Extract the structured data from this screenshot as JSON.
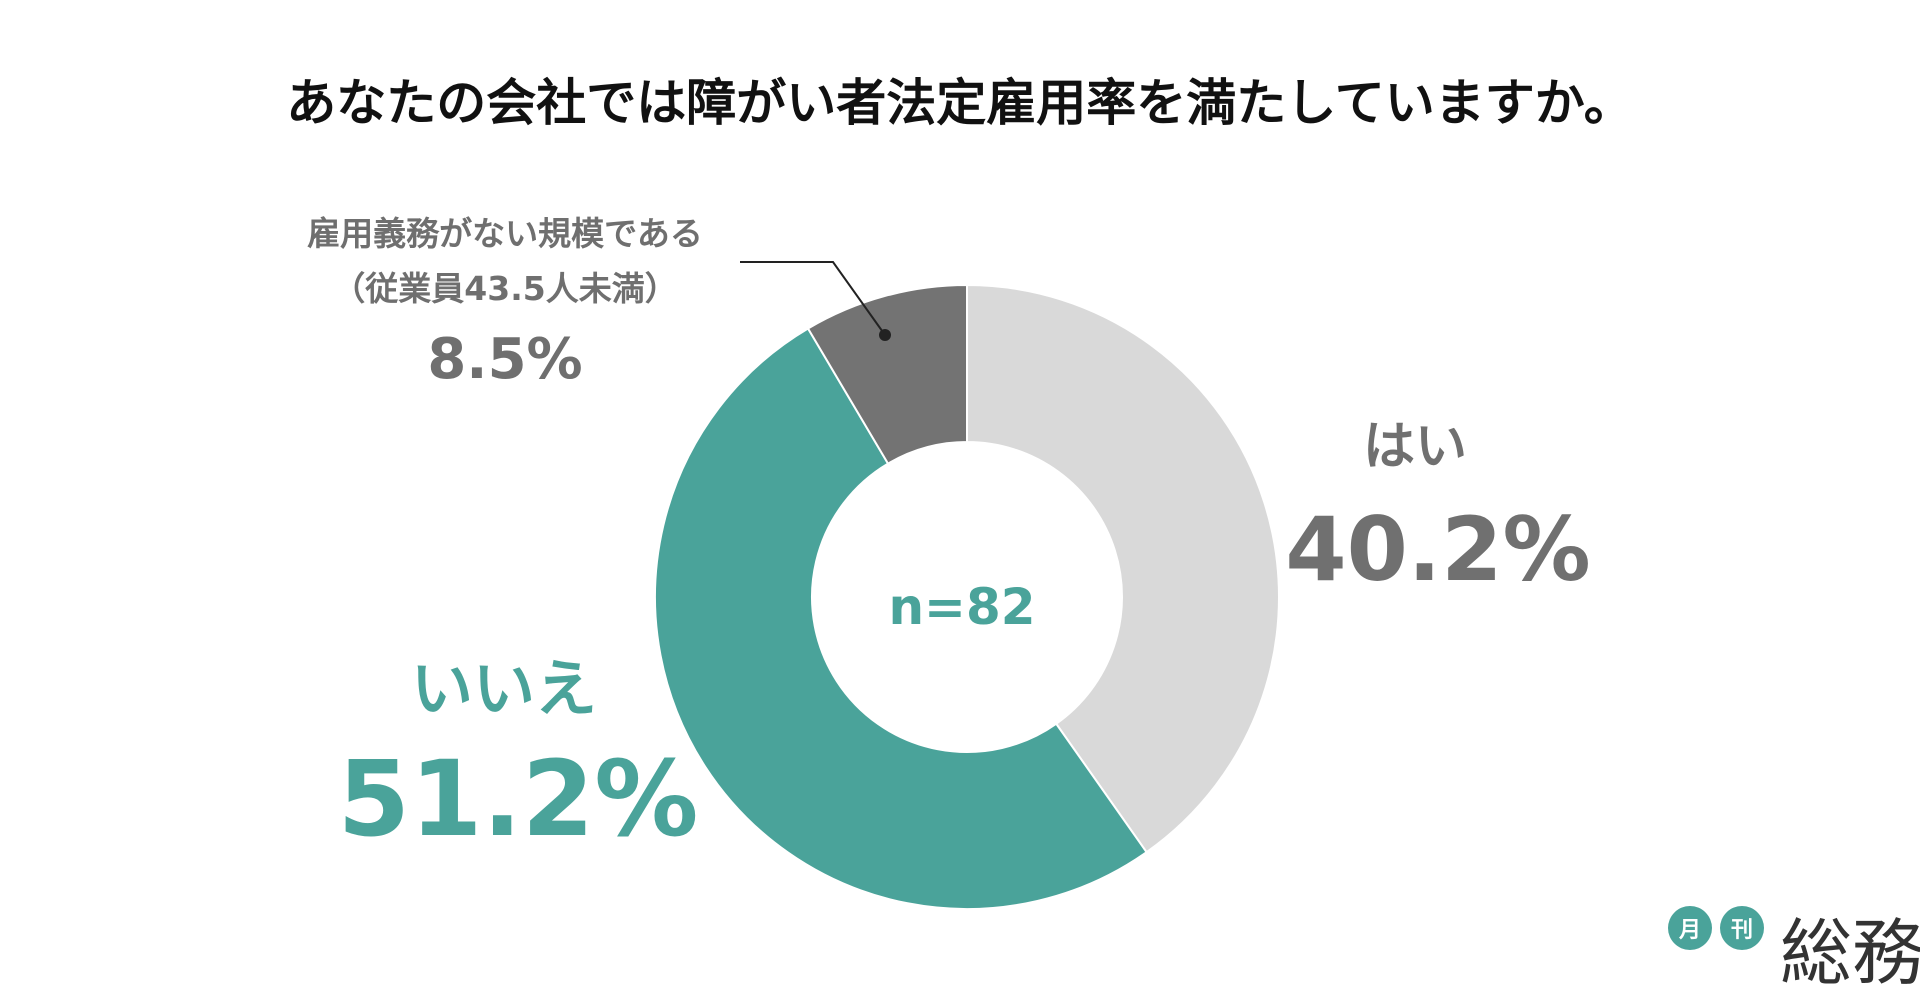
{
  "chart_data": {
    "type": "pie",
    "title": "あなたの会社では障がい者法定雇用率を満たしていますか。",
    "center_label": "n=82",
    "slices": [
      {
        "label": "はい",
        "value": 40.2,
        "value_label": "40.2%",
        "color": "#d9d9d9",
        "text_color": "#707070"
      },
      {
        "label": "いいえ",
        "value": 51.2,
        "value_label": "51.2%",
        "color": "#4aa39a",
        "text_color": "#4aa39a"
      },
      {
        "label_lines": [
          "雇用義務がない規模である",
          "（従業員43.5人未満）"
        ],
        "value": 8.5,
        "value_label": "8.5%",
        "color": "#737373",
        "text_color": "#6f6f6f"
      }
    ]
  },
  "logo": {
    "badge_1": "月",
    "badge_2": "刊",
    "name": "総務",
    "badge_color": "#4aa39a",
    "name_color": "#333333"
  }
}
